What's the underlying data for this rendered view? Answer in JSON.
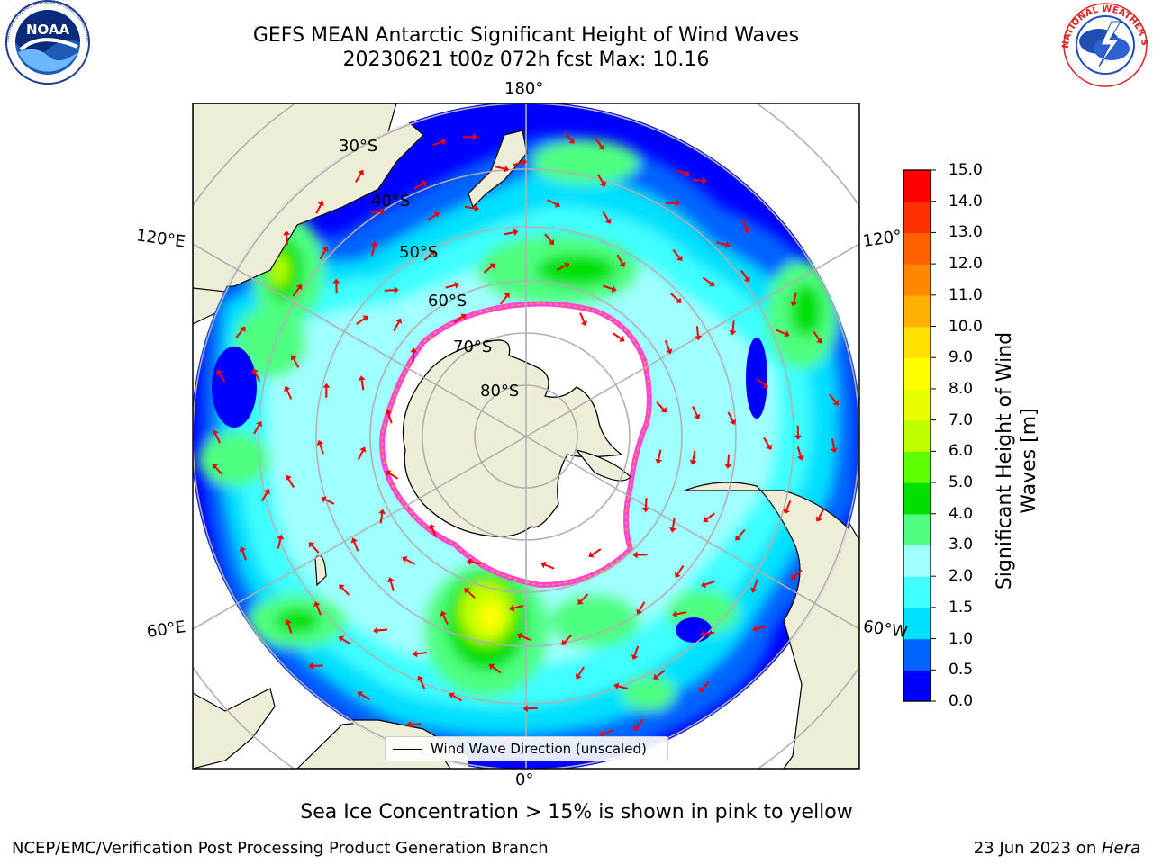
{
  "header": {
    "title_line1": "GEFS MEAN Antarctic Significant Height of Wind Waves",
    "title_line2": "20230621 t00z 072h fcst   Max: 10.16"
  },
  "logos": {
    "noaa_text": "NOAA",
    "noaa_ring_text": "NATIONAL OCEANIC AND ATMOSPHERIC ADMINISTRATION · U.S. DEPARTMENT OF COMMERCE",
    "nws_ring_text": "NATIONAL WEATHER SERVICE"
  },
  "map": {
    "meridian_labels": {
      "top": "180°",
      "bottom": "0°",
      "upper_left": "120°E",
      "lower_left": "60°E",
      "upper_right": "120°",
      "lower_right": "60°W"
    },
    "parallel_labels": [
      "30°S",
      "40°S",
      "50°S",
      "60°S",
      "70°S",
      "80°S"
    ],
    "colors": {
      "land": "#eeeed8",
      "ice": "#ffffff",
      "ice_edge": "#ff44dd",
      "arrow": "#ee0000",
      "grid": "#b0b0b0"
    }
  },
  "colorbar": {
    "title": "Significant Height of Wind Waves [m]",
    "ticks": [
      "0.0",
      "0.5",
      "1.0",
      "1.5",
      "2.0",
      "3.0",
      "4.0",
      "5.0",
      "6.0",
      "7.0",
      "8.0",
      "9.0",
      "10.0",
      "11.0",
      "12.0",
      "13.0",
      "14.0",
      "15.0"
    ],
    "colors": [
      "#0000ff",
      "#0064ff",
      "#00e0ff",
      "#40ffff",
      "#a0ffff",
      "#50ff80",
      "#00e000",
      "#60ff00",
      "#c0ff00",
      "#e8ff00",
      "#ffff00",
      "#ffe000",
      "#ffb000",
      "#ff8800",
      "#ff6000",
      "#ff3000",
      "#ff0000"
    ]
  },
  "legend": {
    "label": "Wind Wave Direction (unscaled)"
  },
  "notes": {
    "sea_ice": "Sea Ice Concentration > 15% is shown in pink to yellow"
  },
  "footer": {
    "left": "NCEP/EMC/Verification Post Processing Product Generation Branch",
    "right_date": "23 Jun 2023 on ",
    "right_machine": "Hera"
  }
}
